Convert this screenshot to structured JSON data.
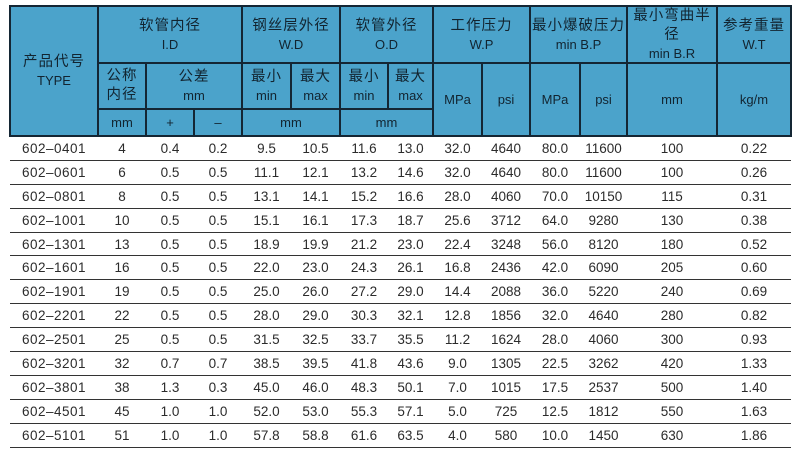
{
  "colors": {
    "header_bg": "#4ba3cb",
    "border_dark": "#142634",
    "row_line": "#333333",
    "data_text": "#2b2b2b",
    "page_bg": "#ffffff"
  },
  "header": {
    "product": {
      "zh": "产品代号",
      "en": "TYPE"
    },
    "inner_diameter": {
      "zh": "软管内径",
      "en": "I.D"
    },
    "nominal": {
      "line1": "公称",
      "line2": "内径"
    },
    "tolerance": {
      "zh": "公差",
      "en": "mm"
    },
    "wire_od": {
      "zh": "钢丝层外径",
      "en": "W.D"
    },
    "hose_od": {
      "zh": "软管外径",
      "en": "O.D"
    },
    "working_pressure": {
      "zh": "工作压力",
      "en": "W.P"
    },
    "burst_pressure": {
      "zh": "最小爆破压力",
      "en": "min B.P"
    },
    "bend_radius": {
      "zh": "最小弯曲半径",
      "en": "min B.R"
    },
    "weight": {
      "zh": "参考重量",
      "en": "W.T"
    },
    "min": {
      "zh": "最小",
      "en": "min"
    },
    "max": {
      "zh": "最大",
      "en": "max"
    },
    "units": {
      "mm": "mm",
      "plus": "+",
      "minus": "–",
      "mpa": "MPa",
      "psi": "psi",
      "kg_per_m": "kg/m"
    }
  },
  "columns": [
    "type",
    "nominal-id-mm",
    "tolerance-plus",
    "tolerance-minus",
    "wd-min-mm",
    "wd-max-mm",
    "od-min-mm",
    "od-max-mm",
    "wp-mpa",
    "wp-psi",
    "bp-mpa",
    "bp-psi",
    "br-mm",
    "wt-kg-per-m"
  ],
  "rows": [
    [
      "602–0401",
      "4",
      "0.4",
      "0.2",
      "9.5",
      "10.5",
      "11.6",
      "13.0",
      "32.0",
      "4640",
      "80.0",
      "11600",
      "100",
      "0.22"
    ],
    [
      "602–0601",
      "6",
      "0.5",
      "0.5",
      "11.1",
      "12.1",
      "13.2",
      "14.6",
      "32.0",
      "4640",
      "80.0",
      "11600",
      "100",
      "0.26"
    ],
    [
      "602–0801",
      "8",
      "0.5",
      "0.5",
      "13.1",
      "14.1",
      "15.2",
      "16.6",
      "28.0",
      "4060",
      "70.0",
      "10150",
      "115",
      "0.31"
    ],
    [
      "602–1001",
      "10",
      "0.5",
      "0.5",
      "15.1",
      "16.1",
      "17.3",
      "18.7",
      "25.6",
      "3712",
      "64.0",
      "9280",
      "130",
      "0.38"
    ],
    [
      "602–1301",
      "13",
      "0.5",
      "0.5",
      "18.9",
      "19.9",
      "21.2",
      "23.0",
      "22.4",
      "3248",
      "56.0",
      "8120",
      "180",
      "0.52"
    ],
    [
      "602–1601",
      "16",
      "0.5",
      "0.5",
      "22.0",
      "23.0",
      "24.3",
      "26.1",
      "16.8",
      "2436",
      "42.0",
      "6090",
      "205",
      "0.60"
    ],
    [
      "602–1901",
      "19",
      "0.5",
      "0.5",
      "25.0",
      "26.0",
      "27.2",
      "29.0",
      "14.4",
      "2088",
      "36.0",
      "5220",
      "240",
      "0.69"
    ],
    [
      "602–2201",
      "22",
      "0.5",
      "0.5",
      "28.0",
      "29.0",
      "30.3",
      "32.1",
      "12.8",
      "1856",
      "32.0",
      "4640",
      "280",
      "0.82"
    ],
    [
      "602–2501",
      "25",
      "0.5",
      "0.5",
      "31.5",
      "32.5",
      "33.7",
      "35.5",
      "11.2",
      "1624",
      "28.0",
      "4060",
      "300",
      "0.93"
    ],
    [
      "602–3201",
      "32",
      "0.7",
      "0.7",
      "38.5",
      "39.5",
      "41.8",
      "43.6",
      "9.0",
      "1305",
      "22.5",
      "3262",
      "420",
      "1.33"
    ],
    [
      "602–3801",
      "38",
      "1.3",
      "0.3",
      "45.0",
      "46.0",
      "48.3",
      "50.1",
      "7.0",
      "1015",
      "17.5",
      "2537",
      "500",
      "1.40"
    ],
    [
      "602–4501",
      "45",
      "1.0",
      "1.0",
      "52.0",
      "53.0",
      "55.3",
      "57.1",
      "5.0",
      "725",
      "12.5",
      "1812",
      "550",
      "1.63"
    ],
    [
      "602–5101",
      "51",
      "1.0",
      "1.0",
      "57.8",
      "58.8",
      "61.6",
      "63.5",
      "4.0",
      "580",
      "10.0",
      "1450",
      "630",
      "1.86"
    ]
  ]
}
